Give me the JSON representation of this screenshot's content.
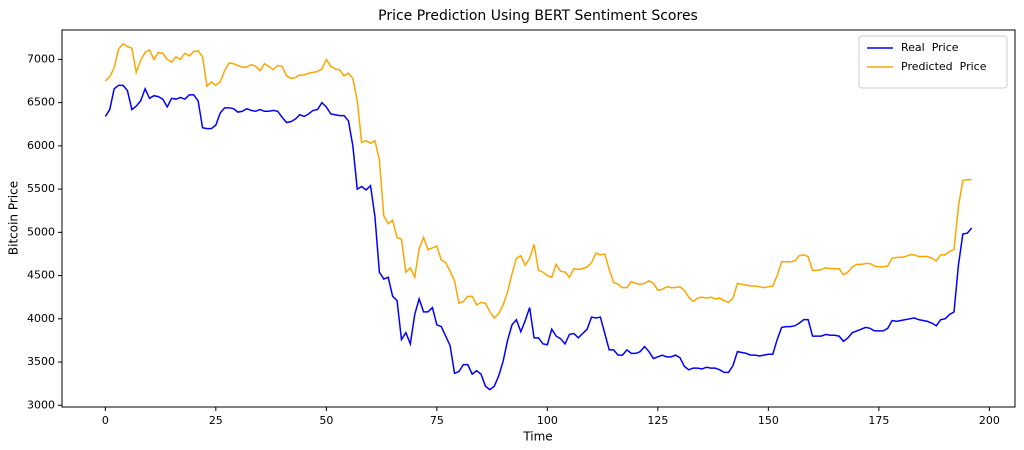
{
  "chart_data": {
    "type": "line",
    "title": "Price Prediction Using BERT Sentiment Scores",
    "x_label": "Time",
    "y_label": "Bitcoin Price",
    "x": [
      0,
      1,
      2,
      3,
      4,
      5,
      6,
      7,
      8,
      9,
      10,
      11,
      12,
      13,
      14,
      15,
      16,
      17,
      18,
      19,
      20,
      21,
      22,
      23,
      24,
      25,
      26,
      27,
      28,
      29,
      30,
      31,
      32,
      33,
      34,
      35,
      36,
      37,
      38,
      39,
      40,
      41,
      42,
      43,
      44,
      45,
      46,
      47,
      48,
      49,
      50,
      51,
      52,
      53,
      54,
      55,
      56,
      57,
      58,
      59,
      60,
      61,
      62,
      63,
      64,
      65,
      66,
      67,
      68,
      69,
      70,
      71,
      72,
      73,
      74,
      75,
      76,
      77,
      78,
      79,
      80,
      81,
      82,
      83,
      84,
      85,
      86,
      87,
      88,
      89,
      90,
      91,
      92,
      93,
      94,
      95,
      96,
      97,
      98,
      99,
      100,
      101,
      102,
      103,
      104,
      105,
      106,
      107,
      108,
      109,
      110,
      111,
      112,
      113,
      114,
      115,
      116,
      117,
      118,
      119,
      120,
      121,
      122,
      123,
      124,
      125,
      126,
      127,
      128,
      129,
      130,
      131,
      132,
      133,
      134,
      135,
      136,
      137,
      138,
      139,
      140,
      141,
      142,
      143,
      144,
      145,
      146,
      147,
      148,
      149,
      150,
      151,
      152,
      153,
      154,
      155,
      156,
      157,
      158,
      159,
      160,
      161,
      162,
      163,
      164,
      165,
      166,
      167,
      168,
      169,
      170,
      171,
      172,
      173,
      174,
      175,
      176,
      177,
      178,
      179,
      180,
      181,
      182,
      183,
      184,
      185,
      186,
      187,
      188,
      189,
      190,
      191,
      192,
      193,
      194,
      195,
      196
    ],
    "series": [
      {
        "name": "Real  Price",
        "color": "#0000ff",
        "values": [
          6340,
          6420,
          6660,
          6700,
          6700,
          6640,
          6420,
          6460,
          6520,
          6660,
          6550,
          6580,
          6570,
          6540,
          6450,
          6550,
          6540,
          6560,
          6540,
          6590,
          6590,
          6520,
          6210,
          6200,
          6200,
          6240,
          6380,
          6440,
          6440,
          6430,
          6390,
          6400,
          6430,
          6410,
          6400,
          6420,
          6400,
          6400,
          6410,
          6400,
          6330,
          6270,
          6280,
          6310,
          6360,
          6340,
          6370,
          6410,
          6420,
          6500,
          6450,
          6370,
          6360,
          6350,
          6350,
          6290,
          6000,
          5500,
          5530,
          5490,
          5540,
          5180,
          4540,
          4460,
          4480,
          4260,
          4210,
          3760,
          3840,
          3710,
          4050,
          4230,
          4080,
          4080,
          4130,
          3930,
          3910,
          3800,
          3690,
          3370,
          3390,
          3470,
          3470,
          3360,
          3400,
          3360,
          3220,
          3180,
          3220,
          3340,
          3510,
          3750,
          3930,
          3990,
          3850,
          3980,
          4130,
          3780,
          3780,
          3710,
          3700,
          3880,
          3800,
          3770,
          3710,
          3820,
          3830,
          3780,
          3830,
          3880,
          4020,
          4010,
          4020,
          3830,
          3640,
          3640,
          3580,
          3580,
          3640,
          3600,
          3600,
          3620,
          3680,
          3620,
          3540,
          3560,
          3580,
          3560,
          3560,
          3580,
          3550,
          3450,
          3410,
          3430,
          3430,
          3420,
          3440,
          3430,
          3430,
          3410,
          3380,
          3380,
          3460,
          3620,
          3610,
          3600,
          3580,
          3580,
          3570,
          3580,
          3590,
          3590,
          3760,
          3900,
          3910,
          3910,
          3920,
          3950,
          3990,
          3990,
          3800,
          3800,
          3800,
          3820,
          3810,
          3810,
          3800,
          3740,
          3780,
          3840,
          3860,
          3880,
          3900,
          3890,
          3860,
          3860,
          3860,
          3890,
          3980,
          3970,
          3980,
          3990,
          4000,
          4010,
          3990,
          3980,
          3970,
          3950,
          3920,
          3990,
          4000,
          4050,
          4080,
          4620,
          4980,
          4990,
          5050
        ]
      },
      {
        "name": "Predicted  Price",
        "color": "#ffa500",
        "values": [
          6750,
          6800,
          6900,
          7120,
          7180,
          7150,
          7130,
          6850,
          6990,
          7080,
          7110,
          7000,
          7080,
          7070,
          7000,
          6970,
          7030,
          7000,
          7070,
          7040,
          7090,
          7100,
          7030,
          6690,
          6740,
          6700,
          6740,
          6870,
          6960,
          6950,
          6930,
          6910,
          6910,
          6940,
          6920,
          6870,
          6950,
          6920,
          6880,
          6930,
          6920,
          6810,
          6780,
          6790,
          6820,
          6820,
          6840,
          6850,
          6860,
          6890,
          7000,
          6920,
          6890,
          6880,
          6810,
          6840,
          6780,
          6520,
          6040,
          6060,
          6030,
          6060,
          5840,
          5190,
          5100,
          5140,
          4940,
          4920,
          4540,
          4590,
          4480,
          4810,
          4940,
          4800,
          4820,
          4840,
          4680,
          4650,
          4550,
          4440,
          4180,
          4200,
          4260,
          4260,
          4160,
          4190,
          4180,
          4080,
          4010,
          4060,
          4160,
          4310,
          4520,
          4700,
          4730,
          4620,
          4700,
          4860,
          4560,
          4540,
          4500,
          4480,
          4630,
          4550,
          4540,
          4480,
          4580,
          4570,
          4580,
          4600,
          4650,
          4760,
          4740,
          4750,
          4570,
          4420,
          4400,
          4360,
          4360,
          4430,
          4410,
          4400,
          4410,
          4440,
          4410,
          4330,
          4340,
          4370,
          4360,
          4360,
          4370,
          4330,
          4250,
          4200,
          4240,
          4250,
          4240,
          4250,
          4230,
          4240,
          4210,
          4190,
          4240,
          4410,
          4400,
          4390,
          4380,
          4380,
          4370,
          4360,
          4370,
          4380,
          4500,
          4660,
          4660,
          4660,
          4670,
          4730,
          4740,
          4720,
          4560,
          4560,
          4570,
          4590,
          4580,
          4580,
          4580,
          4510,
          4540,
          4600,
          4630,
          4630,
          4640,
          4640,
          4610,
          4600,
          4600,
          4610,
          4700,
          4710,
          4710,
          4720,
          4740,
          4740,
          4720,
          4720,
          4720,
          4700,
          4670,
          4740,
          4740,
          4780,
          4800,
          5300,
          5600,
          5610,
          5610
        ]
      }
    ],
    "xlim": [
      -9.8,
      205.8
    ],
    "xticks": [
      0,
      25,
      50,
      75,
      100,
      125,
      150,
      175,
      200
    ],
    "ylim": [
      2980,
      7340
    ],
    "yticks": [
      3000,
      3500,
      4000,
      4500,
      5000,
      5500,
      6000,
      6500,
      7000
    ],
    "legend": "upper right",
    "grid": false
  }
}
